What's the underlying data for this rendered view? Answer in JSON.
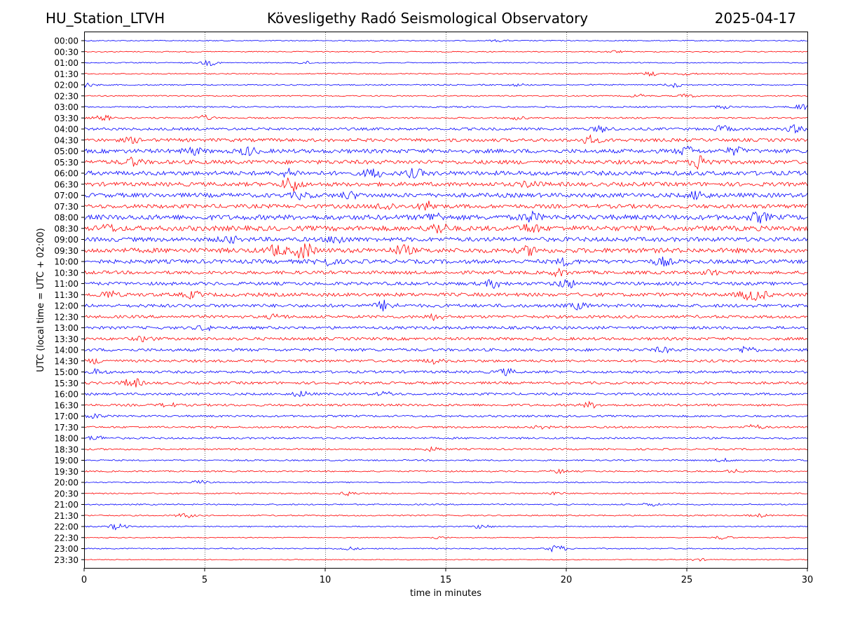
{
  "header": {
    "station": "HU_Station_LTVH",
    "observatory": "Kövesligethy Radó Seismological Observatory",
    "date": "2025-04-17"
  },
  "chart_data": {
    "type": "line",
    "title": "Kövesligethy Radó Seismological Observatory",
    "xlabel": "time in minutes",
    "ylabel": "UTC (local time = UTC + 02:00)",
    "xlim": [
      0,
      30
    ],
    "x_ticks": [
      0,
      5,
      10,
      15,
      20,
      25,
      30
    ],
    "grid": "vertical dotted at 5, 10, 15, 20, 25 minutes",
    "colors": {
      "even_rows": "#0000ff",
      "odd_rows": "#ff0000",
      "grid": "#000000"
    },
    "rows": [
      {
        "label": "00:00",
        "amp": 0.7,
        "events": [
          {
            "t": 17.2,
            "a": 1.2
          }
        ]
      },
      {
        "label": "00:30",
        "amp": 0.7,
        "events": [
          {
            "t": 22.0,
            "a": 1.4
          }
        ]
      },
      {
        "label": "01:00",
        "amp": 0.7,
        "events": [
          {
            "t": 5.2,
            "a": 3.5
          },
          {
            "t": 9.2,
            "a": 1.8
          }
        ]
      },
      {
        "label": "01:30",
        "amp": 0.8,
        "events": [
          {
            "t": 23.5,
            "a": 2.5
          },
          {
            "t": 25.0,
            "a": 1.5
          }
        ]
      },
      {
        "label": "02:00",
        "amp": 0.9,
        "events": [
          {
            "t": 0.1,
            "a": 2.5
          },
          {
            "t": 24.5,
            "a": 3.0
          },
          {
            "t": 18.0,
            "a": 1.5
          }
        ]
      },
      {
        "label": "02:30",
        "amp": 0.8,
        "events": [
          {
            "t": 23.0,
            "a": 2.0
          },
          {
            "t": 25.0,
            "a": 2.5
          }
        ]
      },
      {
        "label": "03:00",
        "amp": 1.0,
        "events": [
          {
            "t": 29.8,
            "a": 4.0
          },
          {
            "t": 26.5,
            "a": 2.0
          }
        ]
      },
      {
        "label": "03:30",
        "amp": 1.1,
        "events": [
          {
            "t": 0.8,
            "a": 3.5
          },
          {
            "t": 5.0,
            "a": 3.0
          },
          {
            "t": 18.0,
            "a": 2.0
          }
        ]
      },
      {
        "label": "04:00",
        "amp": 1.8,
        "events": [
          {
            "t": 21.5,
            "a": 4.0
          },
          {
            "t": 26.5,
            "a": 4.0
          },
          {
            "t": 29.5,
            "a": 4.5
          }
        ]
      },
      {
        "label": "04:30",
        "amp": 2.3,
        "events": [
          {
            "t": 21.0,
            "a": 5.0
          },
          {
            "t": 2.0,
            "a": 3.0
          }
        ]
      },
      {
        "label": "05:00",
        "amp": 2.8,
        "events": [
          {
            "t": 4.5,
            "a": 4.5
          },
          {
            "t": 6.8,
            "a": 5.0
          },
          {
            "t": 25.0,
            "a": 5.5
          },
          {
            "t": 27.0,
            "a": 4.5
          }
        ]
      },
      {
        "label": "05:30",
        "amp": 2.8,
        "events": [
          {
            "t": 2.0,
            "a": 5.0
          },
          {
            "t": 25.6,
            "a": 10.0
          }
        ]
      },
      {
        "label": "06:00",
        "amp": 3.0,
        "events": [
          {
            "t": 12.0,
            "a": 5.5
          },
          {
            "t": 13.7,
            "a": 5.0
          },
          {
            "t": 8.5,
            "a": 4.5
          }
        ]
      },
      {
        "label": "06:30",
        "amp": 2.8,
        "events": [
          {
            "t": 8.6,
            "a": 10.0
          },
          {
            "t": 18.5,
            "a": 4.0
          }
        ]
      },
      {
        "label": "07:00",
        "amp": 3.0,
        "events": [
          {
            "t": 25.5,
            "a": 5.5
          },
          {
            "t": 9.0,
            "a": 4.0
          },
          {
            "t": 11.0,
            "a": 4.0
          }
        ]
      },
      {
        "label": "07:30",
        "amp": 2.8,
        "events": [
          {
            "t": 12.5,
            "a": 5.0
          },
          {
            "t": 14.3,
            "a": 6.0
          }
        ]
      },
      {
        "label": "08:00",
        "amp": 3.5,
        "events": [
          {
            "t": 14.5,
            "a": 5.5
          },
          {
            "t": 18.5,
            "a": 6.0
          },
          {
            "t": 28.0,
            "a": 6.0
          }
        ]
      },
      {
        "label": "08:30",
        "amp": 3.5,
        "events": [
          {
            "t": 14.7,
            "a": 6.5
          },
          {
            "t": 18.5,
            "a": 5.5
          },
          {
            "t": 1.0,
            "a": 4.0
          }
        ]
      },
      {
        "label": "09:00",
        "amp": 3.0,
        "events": [
          {
            "t": 10.5,
            "a": 5.0
          },
          {
            "t": 6.0,
            "a": 4.0
          }
        ]
      },
      {
        "label": "09:30",
        "amp": 3.3,
        "events": [
          {
            "t": 8.0,
            "a": 7.0
          },
          {
            "t": 9.1,
            "a": 11.0
          },
          {
            "t": 13.2,
            "a": 6.0
          },
          {
            "t": 18.5,
            "a": 5.0
          }
        ]
      },
      {
        "label": "10:00",
        "amp": 2.8,
        "events": [
          {
            "t": 10.0,
            "a": 5.0
          },
          {
            "t": 24.0,
            "a": 5.0
          },
          {
            "t": 20.0,
            "a": 4.0
          }
        ]
      },
      {
        "label": "10:30",
        "amp": 2.3,
        "events": [
          {
            "t": 19.7,
            "a": 4.0
          },
          {
            "t": 26.0,
            "a": 3.0
          }
        ]
      },
      {
        "label": "11:00",
        "amp": 2.3,
        "events": [
          {
            "t": 20.0,
            "a": 6.0
          },
          {
            "t": 17.0,
            "a": 5.0
          }
        ]
      },
      {
        "label": "11:30",
        "amp": 2.5,
        "events": [
          {
            "t": 1.0,
            "a": 4.5
          },
          {
            "t": 4.5,
            "a": 4.0
          },
          {
            "t": 27.5,
            "a": 5.0
          },
          {
            "t": 28.0,
            "a": 5.5
          }
        ]
      },
      {
        "label": "12:00",
        "amp": 2.3,
        "events": [
          {
            "t": 12.5,
            "a": 7.0
          },
          {
            "t": 20.5,
            "a": 4.0
          }
        ]
      },
      {
        "label": "12:30",
        "amp": 2.0,
        "events": [
          {
            "t": 14.5,
            "a": 3.5
          },
          {
            "t": 8.0,
            "a": 3.0
          }
        ]
      },
      {
        "label": "13:00",
        "amp": 2.0,
        "events": [
          {
            "t": 5.0,
            "a": 3.0
          }
        ]
      },
      {
        "label": "13:30",
        "amp": 2.0,
        "events": [
          {
            "t": 2.5,
            "a": 3.0
          }
        ]
      },
      {
        "label": "14:00",
        "amp": 2.0,
        "events": [
          {
            "t": 27.5,
            "a": 4.5
          },
          {
            "t": 24.0,
            "a": 3.0
          }
        ]
      },
      {
        "label": "14:30",
        "amp": 1.8,
        "events": [
          {
            "t": 0.5,
            "a": 3.0
          },
          {
            "t": 14.5,
            "a": 3.0
          }
        ]
      },
      {
        "label": "15:00",
        "amp": 1.8,
        "events": [
          {
            "t": 17.5,
            "a": 4.0
          },
          {
            "t": 0.5,
            "a": 3.0
          }
        ]
      },
      {
        "label": "15:30",
        "amp": 1.8,
        "events": [
          {
            "t": 2.0,
            "a": 6.5
          }
        ]
      },
      {
        "label": "16:00",
        "amp": 1.6,
        "events": [
          {
            "t": 9.0,
            "a": 3.5
          },
          {
            "t": 12.5,
            "a": 2.5
          }
        ]
      },
      {
        "label": "16:30",
        "amp": 1.6,
        "events": [
          {
            "t": 21.0,
            "a": 3.5
          },
          {
            "t": 3.5,
            "a": 2.5
          }
        ]
      },
      {
        "label": "17:00",
        "amp": 1.4,
        "events": [
          {
            "t": 0.5,
            "a": 2.5
          }
        ]
      },
      {
        "label": "17:30",
        "amp": 1.3,
        "events": [
          {
            "t": 27.8,
            "a": 3.0
          },
          {
            "t": 19.0,
            "a": 2.0
          }
        ]
      },
      {
        "label": "18:00",
        "amp": 1.3,
        "events": [
          {
            "t": 0.5,
            "a": 3.0
          }
        ]
      },
      {
        "label": "18:30",
        "amp": 1.2,
        "events": [
          {
            "t": 14.5,
            "a": 2.5
          }
        ]
      },
      {
        "label": "19:00",
        "amp": 1.0,
        "events": [
          {
            "t": 26.5,
            "a": 2.0
          }
        ]
      },
      {
        "label": "19:30",
        "amp": 1.0,
        "events": [
          {
            "t": 19.7,
            "a": 2.5
          },
          {
            "t": 27.0,
            "a": 2.0
          }
        ]
      },
      {
        "label": "20:00",
        "amp": 0.8,
        "events": [
          {
            "t": 4.8,
            "a": 2.5
          }
        ]
      },
      {
        "label": "20:30",
        "amp": 0.9,
        "events": [
          {
            "t": 11.0,
            "a": 2.5
          },
          {
            "t": 19.5,
            "a": 2.0
          }
        ]
      },
      {
        "label": "21:00",
        "amp": 0.9,
        "events": [
          {
            "t": 23.5,
            "a": 2.0
          }
        ]
      },
      {
        "label": "21:30",
        "amp": 0.9,
        "events": [
          {
            "t": 4.2,
            "a": 3.0
          },
          {
            "t": 28.0,
            "a": 2.0
          }
        ]
      },
      {
        "label": "22:00",
        "amp": 0.8,
        "events": [
          {
            "t": 1.4,
            "a": 4.0
          },
          {
            "t": 16.5,
            "a": 3.0
          }
        ]
      },
      {
        "label": "22:30",
        "amp": 0.6,
        "events": [
          {
            "t": 26.5,
            "a": 2.5
          },
          {
            "t": 14.7,
            "a": 1.5
          }
        ]
      },
      {
        "label": "23:00",
        "amp": 0.8,
        "events": [
          {
            "t": 19.6,
            "a": 5.0
          },
          {
            "t": 11.0,
            "a": 2.0
          }
        ]
      },
      {
        "label": "23:30",
        "amp": 0.6,
        "events": [
          {
            "t": 25.5,
            "a": 1.5
          }
        ]
      }
    ]
  }
}
